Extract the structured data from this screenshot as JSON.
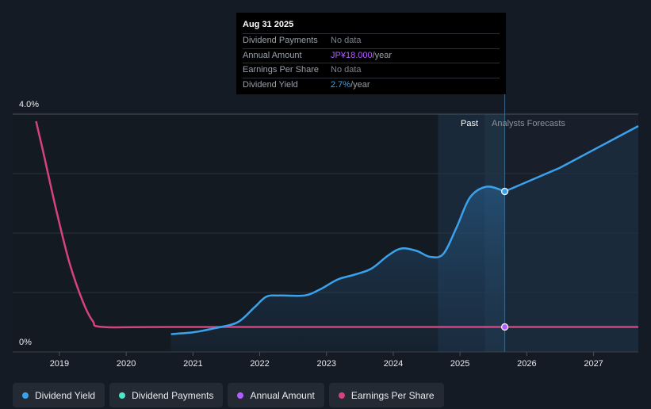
{
  "chart_data": {
    "type": "line",
    "x_ticks": [
      "2019",
      "2020",
      "2021",
      "2022",
      "2023",
      "2024",
      "2025",
      "2026",
      "2027"
    ],
    "y_ticks": [
      "4.0%",
      "0%"
    ],
    "ylim": [
      0,
      4.0
    ],
    "xlim": [
      2018.3,
      2027.67
    ],
    "section_labels": {
      "past": "Past",
      "forecast": "Analysts Forecasts"
    },
    "past_region": [
      2024.67,
      2025.67
    ],
    "forecast_start": 2025.67,
    "series": [
      {
        "name": "Dividend Yield",
        "color": "#3aa2ec",
        "points": [
          [
            2020.67,
            0.3
          ],
          [
            2021.0,
            0.33
          ],
          [
            2021.33,
            0.4
          ],
          [
            2021.67,
            0.5
          ],
          [
            2021.92,
            0.75
          ],
          [
            2022.1,
            0.93
          ],
          [
            2022.3,
            0.95
          ],
          [
            2022.67,
            0.95
          ],
          [
            2022.9,
            1.05
          ],
          [
            2023.17,
            1.22
          ],
          [
            2023.42,
            1.3
          ],
          [
            2023.67,
            1.4
          ],
          [
            2023.92,
            1.62
          ],
          [
            2024.12,
            1.74
          ],
          [
            2024.35,
            1.7
          ],
          [
            2024.55,
            1.6
          ],
          [
            2024.75,
            1.65
          ],
          [
            2024.95,
            2.1
          ],
          [
            2025.15,
            2.6
          ],
          [
            2025.4,
            2.78
          ],
          [
            2025.67,
            2.7
          ]
        ],
        "forecast_points": [
          [
            2025.67,
            2.7
          ],
          [
            2026.5,
            3.1
          ],
          [
            2027.67,
            3.8
          ]
        ]
      },
      {
        "name": "Dividend Payments",
        "color": "#4fe3c8",
        "points": []
      },
      {
        "name": "Annual Amount",
        "color": "#b15dff",
        "points": [
          [
            2025.67,
            0.42
          ]
        ]
      },
      {
        "name": "Earnings Per Share",
        "color": "#d6427d",
        "points": [
          [
            2018.65,
            3.88
          ],
          [
            2018.75,
            3.4
          ],
          [
            2018.95,
            2.4
          ],
          [
            2019.15,
            1.5
          ],
          [
            2019.35,
            0.85
          ],
          [
            2019.5,
            0.52
          ],
          [
            2019.65,
            0.42
          ],
          [
            2020.67,
            0.42
          ],
          [
            2025.67,
            0.42
          ],
          [
            2027.67,
            0.42
          ]
        ]
      }
    ],
    "highlight_x": 2025.67
  },
  "tooltip": {
    "date": "Aug 31 2025",
    "rows": [
      {
        "label": "Dividend Payments",
        "value": "No data",
        "unit": ""
      },
      {
        "label": "Annual Amount",
        "value": "JP¥18.000",
        "unit": "/year"
      },
      {
        "label": "Earnings Per Share",
        "value": "No data",
        "unit": ""
      },
      {
        "label": "Dividend Yield",
        "value": "2.7%",
        "unit": "/year"
      }
    ]
  },
  "legend": [
    {
      "label": "Dividend Yield",
      "color": "#3aa2ec"
    },
    {
      "label": "Dividend Payments",
      "color": "#4fe3c8"
    },
    {
      "label": "Annual Amount",
      "color": "#b15dff"
    },
    {
      "label": "Earnings Per Share",
      "color": "#d6427d"
    }
  ]
}
